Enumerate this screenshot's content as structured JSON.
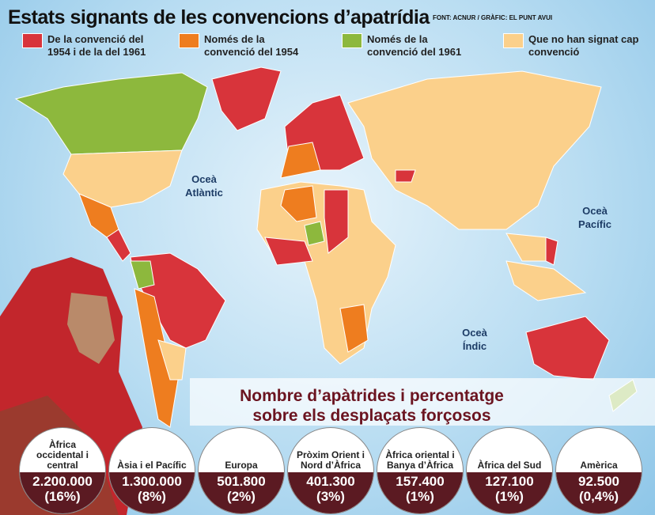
{
  "header": {
    "title": "Estats signants de les convencions d’apatrídia",
    "source": "FONT: ACNUR / GRÀFIC: EL PUNT AVUI"
  },
  "legend": [
    {
      "label": "De la convenció del 1954 i de la del 1961",
      "color": "#d8343b"
    },
    {
      "label": "Només de la convenció del 1954",
      "color": "#ee7d1f"
    },
    {
      "label": "Només de la convenció del 1961",
      "color": "#8db83d"
    },
    {
      "label": "Que no han signat cap convenció",
      "color": "#fbd08b"
    }
  ],
  "map_labels": [
    "Oceà Atlàntic",
    "Oceà Pacífic",
    "Oceà Índic"
  ],
  "panel": {
    "title": "Nombre d’apàtrides i percentatge sobre els desplaçats forçosos",
    "regions": [
      {
        "name": "Àfrica occidental i central",
        "count": "2.200.000",
        "share": "(16%)"
      },
      {
        "name": "Àsia i el Pacífic",
        "count": "1.300.000",
        "share": "(8%)"
      },
      {
        "name": "Europa",
        "count": "501.800",
        "share": "(2%)"
      },
      {
        "name": "Pròxim Orient i Nord d’Àfrica",
        "count": "401.300",
        "share": "(3%)"
      },
      {
        "name": "Àfrica oriental i Banya d’Àfrica",
        "count": "157.400",
        "share": "(1%)"
      },
      {
        "name": "Àfrica del Sud",
        "count": "127.100",
        "share": "(1%)"
      },
      {
        "name": "Amèrica",
        "count": "92.500",
        "share": "(0,4%)"
      }
    ]
  }
}
